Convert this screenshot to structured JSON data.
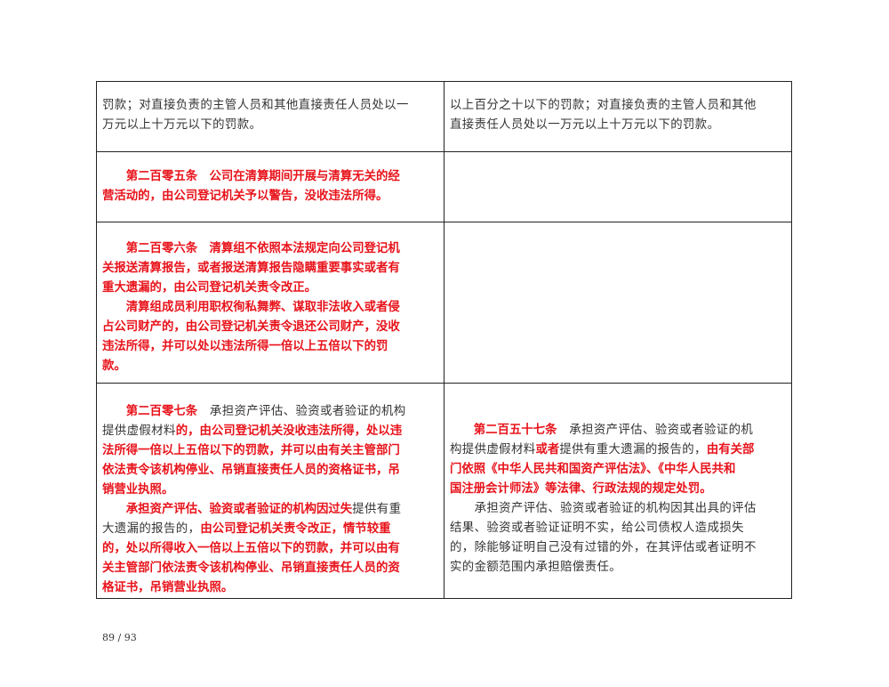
{
  "page_number": "89 / 93",
  "rows": [
    {
      "left": [
        [
          [
            "罚款；对直接负责的主管人员和其他直接责任人员处以一",
            0
          ]
        ],
        [
          [
            "万元以上十万元以下的罚款。",
            0
          ]
        ]
      ],
      "right": [
        [
          [
            "以上百分之十以下的罚款；对直接负责的主管人员和其他",
            0
          ]
        ],
        [
          [
            "直接责任人员处以一万元以上十万元以下的罚款。",
            0
          ]
        ]
      ]
    },
    {
      "left": [
        [
          [
            "　　第二百零五条　公司在清算期间开展与清算无关的经",
            1
          ]
        ],
        [
          [
            "营活动的，由公司登记机关予以警告，没收违法所得。",
            1
          ]
        ]
      ],
      "right": []
    },
    {
      "left": [
        [
          [
            "　　第二百零六条　清算组不依照本法规定向公司登记机",
            1
          ]
        ],
        [
          [
            "关报送清算报告，或者报送清算报告隐瞒重要事实或者有",
            1
          ]
        ],
        [
          [
            "重大遗漏的，由公司登记机关责令改正。",
            1
          ]
        ],
        [
          [
            "　　清算组成员利用职权徇私舞弊、谋取非法收入或者侵",
            1
          ]
        ],
        [
          [
            "占公司财产的，由公司登记机关责令退还公司财产，没收",
            1
          ]
        ],
        [
          [
            "违法所得，并可以处以违法所得一倍以上五倍以下的罚",
            1
          ]
        ],
        [
          [
            "款。",
            1
          ]
        ]
      ],
      "right": []
    },
    {
      "left": [
        [
          [
            "　　第二百零七条",
            1
          ],
          [
            "　承担资产评估、验资或者验证的机构",
            0
          ]
        ],
        [
          [
            "提供虚假材料",
            0
          ],
          [
            "的，由公司登记机关没收违法所得，处以违",
            1
          ]
        ],
        [
          [
            "法所得一倍以上五倍以下的罚款，并可以由有关主管部门",
            1
          ]
        ],
        [
          [
            "依法责令该机构停业、吊销直接责任人员的资格证书，吊",
            1
          ]
        ],
        [
          [
            "销营业执照。",
            1
          ]
        ],
        [
          [
            "　　承担资产评估、验资或者验证的机构因过失",
            1
          ],
          [
            "提供有重",
            0
          ]
        ],
        [
          [
            "大遗漏的报告的，",
            0
          ],
          [
            "由公司登记机关责令改正，情节较重",
            1
          ]
        ],
        [
          [
            "的，处以所得收入一倍以上五倍以下的罚款，并可以由有",
            1
          ]
        ],
        [
          [
            "关主管部门依法责令该机构停业、吊销直接责任人员的资",
            1
          ]
        ],
        [
          [
            "格证书，吊销营业执照。",
            1
          ]
        ]
      ],
      "right": [
        [
          [
            "　　第二百五十七条",
            1
          ],
          [
            "　承担资产评估、验资或者验证的机",
            0
          ]
        ],
        [
          [
            "构提供虚假材料",
            0
          ],
          [
            "或者",
            1
          ],
          [
            "提供有重大遗漏的报告的，",
            0
          ],
          [
            "由有关部",
            1
          ]
        ],
        [
          [
            "门依照《中华人民共和国资产评估法》、《中华人民共和",
            1
          ]
        ],
        [
          [
            "国注册会计师法》等法律、行政法规的规定处罚。",
            1
          ]
        ],
        [
          [
            "　　承担资产评估、验资或者验证的机构因其出具的评估",
            0
          ]
        ],
        [
          [
            "结果、验资或者验证证明不实，给公司债权人造成损失",
            0
          ]
        ],
        [
          [
            "的，除能够证明自己没有过错的外，在其评估或者证明不",
            0
          ]
        ],
        [
          [
            "实的金额范围内承担赔偿责任。",
            0
          ]
        ]
      ]
    }
  ],
  "colors": {
    "red": "#e8131b",
    "text": "#333333",
    "border": "#222222"
  }
}
